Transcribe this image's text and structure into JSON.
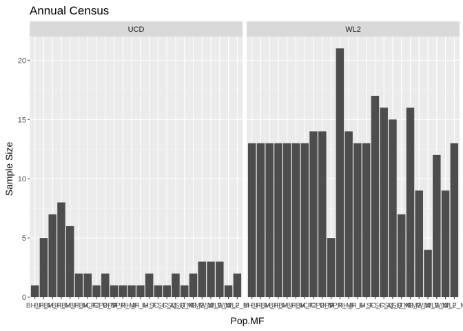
{
  "chart_data": {
    "type": "bar",
    "title": "Annual Census",
    "xlabel": "Pop.MF",
    "ylabel": "Sample Size",
    "ylim": [
      0,
      22
    ],
    "yticks": [
      0,
      5,
      10,
      15,
      20
    ],
    "grid": true,
    "facets": [
      {
        "name": "UCD",
        "categories": [
          "BH_F",
          "BH_M",
          "BH_F",
          "BH_M",
          "BH_F",
          "BH_M",
          "BH_F",
          "CP2_F",
          "CP2_M",
          "DPR_F",
          "DPR_M",
          "IH_F",
          "IH_M",
          "IH_F",
          "SC_F",
          "SC_M",
          "SQ_F",
          "SQ_M",
          "TM2_F",
          "TM2_M",
          "WL1_F",
          "WL1_M",
          "WL2_F",
          "WL2_M"
        ],
        "values": [
          1,
          5,
          7,
          8,
          6,
          2,
          2,
          1,
          2,
          1,
          1,
          1,
          1,
          2,
          1,
          1,
          2,
          1,
          2,
          3,
          3,
          3,
          1,
          2
        ]
      },
      {
        "name": "WL2",
        "categories": [
          "BH_F",
          "BH_M",
          "BH_F",
          "BH_M",
          "BH_F",
          "BH_M",
          "BH_F",
          "CP2_F",
          "CP2_M",
          "DPR_F",
          "DPR_M",
          "IH_F",
          "IH_M",
          "IH_F",
          "SC_F",
          "SC_M",
          "SQ_F",
          "SQ_M",
          "TM2_F",
          "TM2_M",
          "WL1_F",
          "WL1_M",
          "WL2_F",
          "WL2_M"
        ],
        "values": [
          13,
          13,
          13,
          13,
          13,
          13,
          13,
          14,
          14,
          5,
          21,
          14,
          13,
          13,
          17,
          16,
          15,
          7,
          16,
          9,
          4,
          12,
          9,
          13
        ]
      }
    ]
  }
}
